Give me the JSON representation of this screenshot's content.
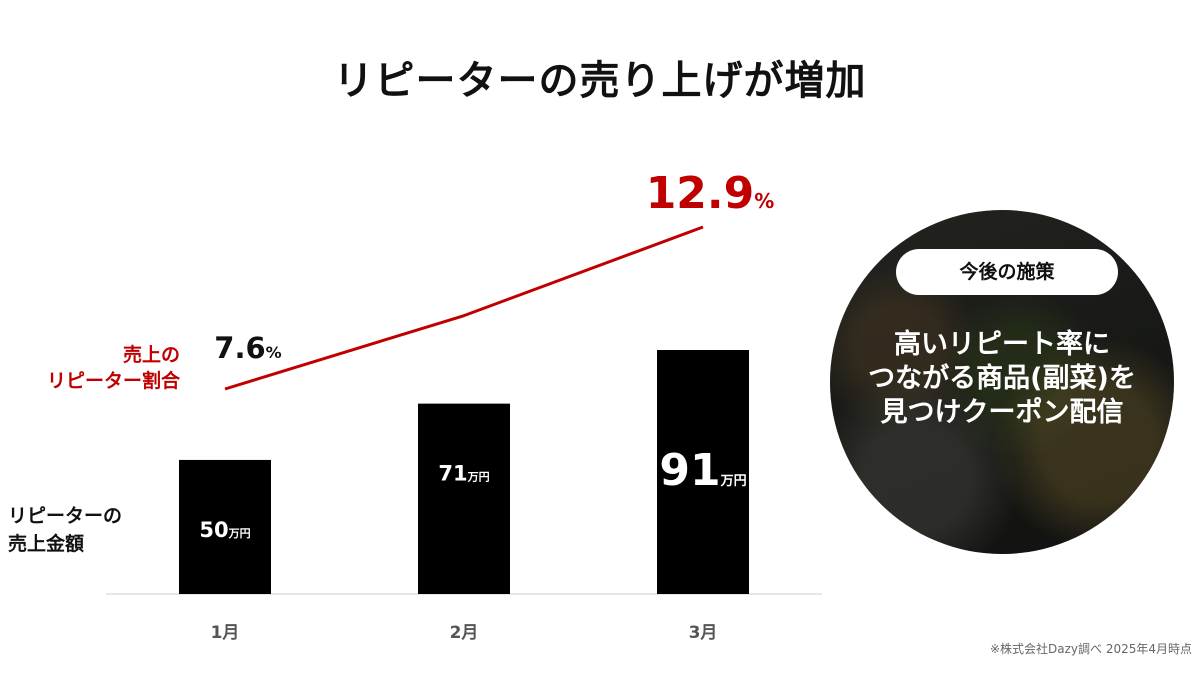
{
  "title": "リピーターの売り上げが増加",
  "chart_data": {
    "type": "bar",
    "categories": [
      "1月",
      "2月",
      "3月"
    ],
    "bar_series": {
      "label": "リピーターの\n売上金額",
      "unit": "万円",
      "values": [
        50,
        71,
        91
      ],
      "color": "#000000"
    },
    "line_series": {
      "label": "売上の\nリピーター割合",
      "unit": "%",
      "values": [
        7.6,
        10.0,
        12.9
      ],
      "labeled_points": [
        0,
        2
      ],
      "color": "#c00000"
    },
    "grid": false,
    "legend": "none"
  },
  "callout": {
    "pill": "今後の施策",
    "text": "高いリピート率に\nつながる商品(副菜)を\n見つけクーポン配信"
  },
  "footnote": "※株式会社Dazy調べ 2025年4月時点"
}
